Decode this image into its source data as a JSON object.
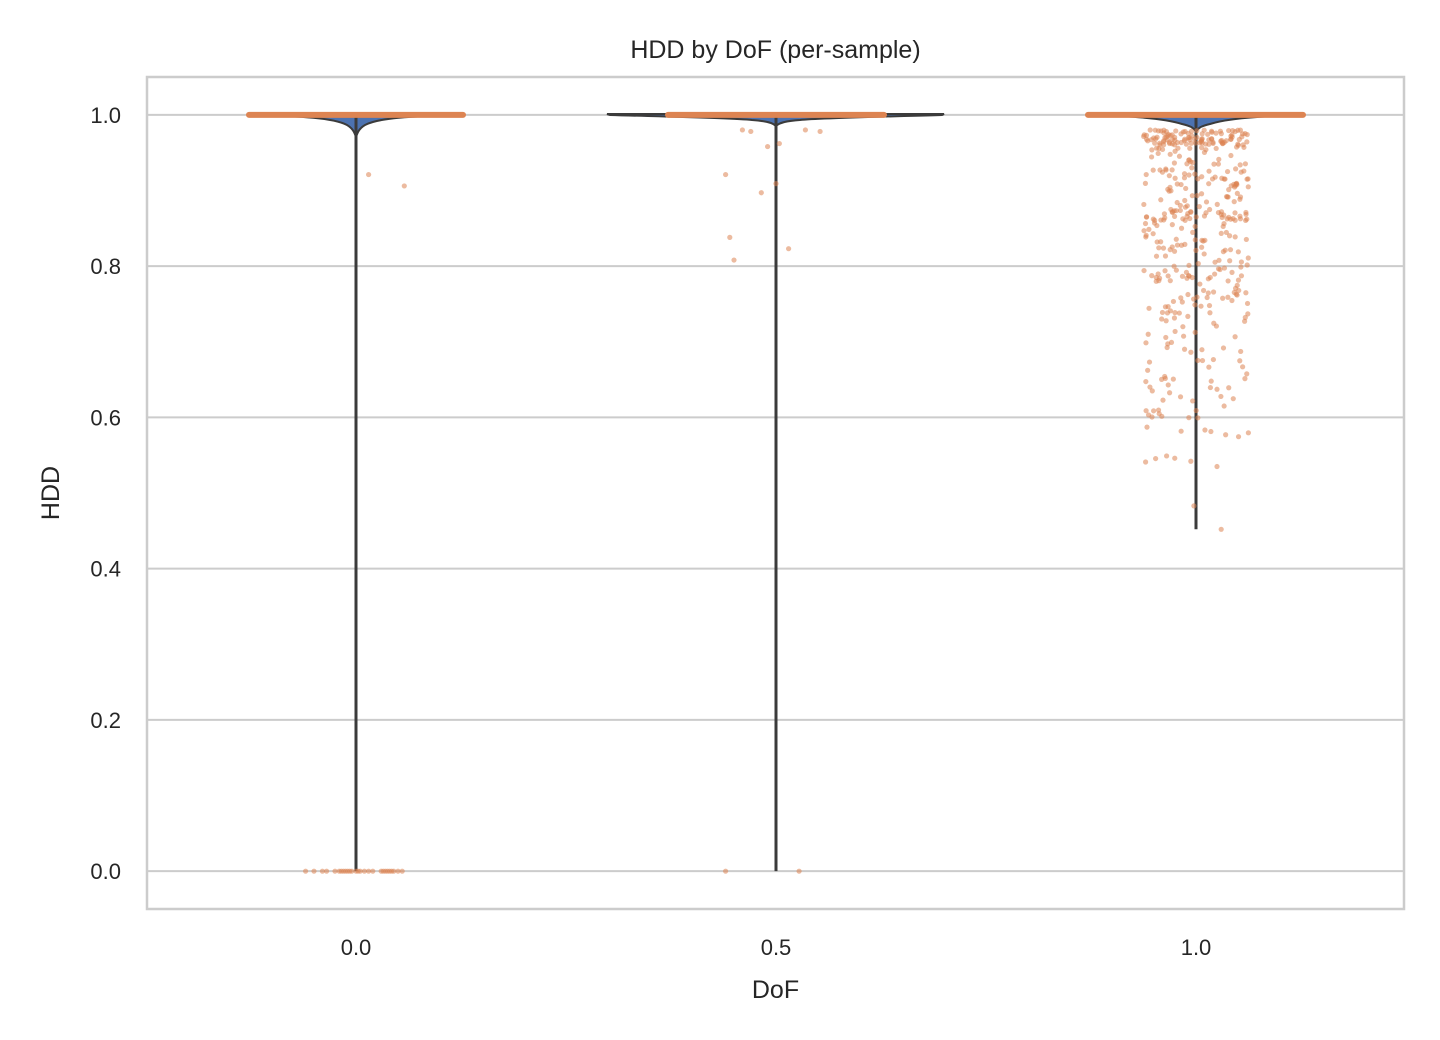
{
  "chart_data": {
    "type": "violin",
    "title": "HDD by DoF (per-sample)",
    "xlabel": "DoF",
    "ylabel": "HDD",
    "categories": [
      "0.0",
      "0.5",
      "1.0"
    ],
    "yticks": [
      "0.0",
      "0.2",
      "0.4",
      "0.6",
      "0.8",
      "1.0"
    ],
    "ylim": [
      -0.05,
      1.05
    ],
    "grid": "horizontal",
    "colors": {
      "violin": "#4c72b0",
      "box": "#dd8452",
      "points": "#dd8452",
      "whisker": "#3b3b3b",
      "grid": "#cccccc",
      "frame": "#cccccc"
    },
    "violins": [
      {
        "category": "0.0",
        "min": 0.0,
        "max": 1.0,
        "median": 1.0,
        "q1": 1.0,
        "q3": 1.0,
        "points": [
          {
            "x": -0.12,
            "y": 0.0
          },
          {
            "x": -0.1,
            "y": 0.0
          },
          {
            "x": -0.08,
            "y": 0.0
          },
          {
            "x": -0.07,
            "y": 0.0
          },
          {
            "x": -0.05,
            "y": 0.0
          },
          {
            "x": -0.04,
            "y": 0.0
          },
          {
            "x": -0.035,
            "y": 0.0
          },
          {
            "x": -0.03,
            "y": 0.0
          },
          {
            "x": -0.025,
            "y": 0.0
          },
          {
            "x": -0.02,
            "y": 0.0
          },
          {
            "x": -0.015,
            "y": 0.0
          },
          {
            "x": -0.01,
            "y": 0.0
          },
          {
            "x": 0.0,
            "y": 0.0
          },
          {
            "x": 0.005,
            "y": 0.0
          },
          {
            "x": 0.01,
            "y": 0.0
          },
          {
            "x": 0.02,
            "y": 0.0
          },
          {
            "x": 0.03,
            "y": 0.0
          },
          {
            "x": 0.04,
            "y": 0.0
          },
          {
            "x": 0.06,
            "y": 0.0
          },
          {
            "x": 0.065,
            "y": 0.0
          },
          {
            "x": 0.07,
            "y": 0.0
          },
          {
            "x": 0.075,
            "y": 0.0
          },
          {
            "x": 0.08,
            "y": 0.0
          },
          {
            "x": 0.085,
            "y": 0.0
          },
          {
            "x": 0.09,
            "y": 0.0
          },
          {
            "x": 0.1,
            "y": 0.0
          },
          {
            "x": 0.11,
            "y": 0.0
          },
          {
            "x": 0.03,
            "y": 0.921
          },
          {
            "x": 0.115,
            "y": 0.906
          }
        ]
      },
      {
        "category": "0.5",
        "min": 0.0,
        "max": 1.0,
        "median": 1.0,
        "q1": 1.0,
        "q3": 1.0,
        "points": [
          {
            "x": -0.12,
            "y": 0.921
          },
          {
            "x": -0.11,
            "y": 0.838
          },
          {
            "x": -0.1,
            "y": 0.808
          },
          {
            "x": -0.08,
            "y": 0.98
          },
          {
            "x": -0.06,
            "y": 0.978
          },
          {
            "x": -0.035,
            "y": 0.897
          },
          {
            "x": -0.02,
            "y": 0.958
          },
          {
            "x": 0.0,
            "y": 0.909
          },
          {
            "x": 0.008,
            "y": 0.962
          },
          {
            "x": 0.03,
            "y": 0.823
          },
          {
            "x": 0.07,
            "y": 0.98
          },
          {
            "x": 0.105,
            "y": 0.978
          },
          {
            "x": -0.12,
            "y": 0.0
          },
          {
            "x": 0.055,
            "y": 0.0
          }
        ]
      },
      {
        "category": "1.0",
        "min": 0.452,
        "max": 1.0,
        "median": 1.0,
        "q1": 1.0,
        "q3": 1.0,
        "points": []
      }
    ]
  }
}
